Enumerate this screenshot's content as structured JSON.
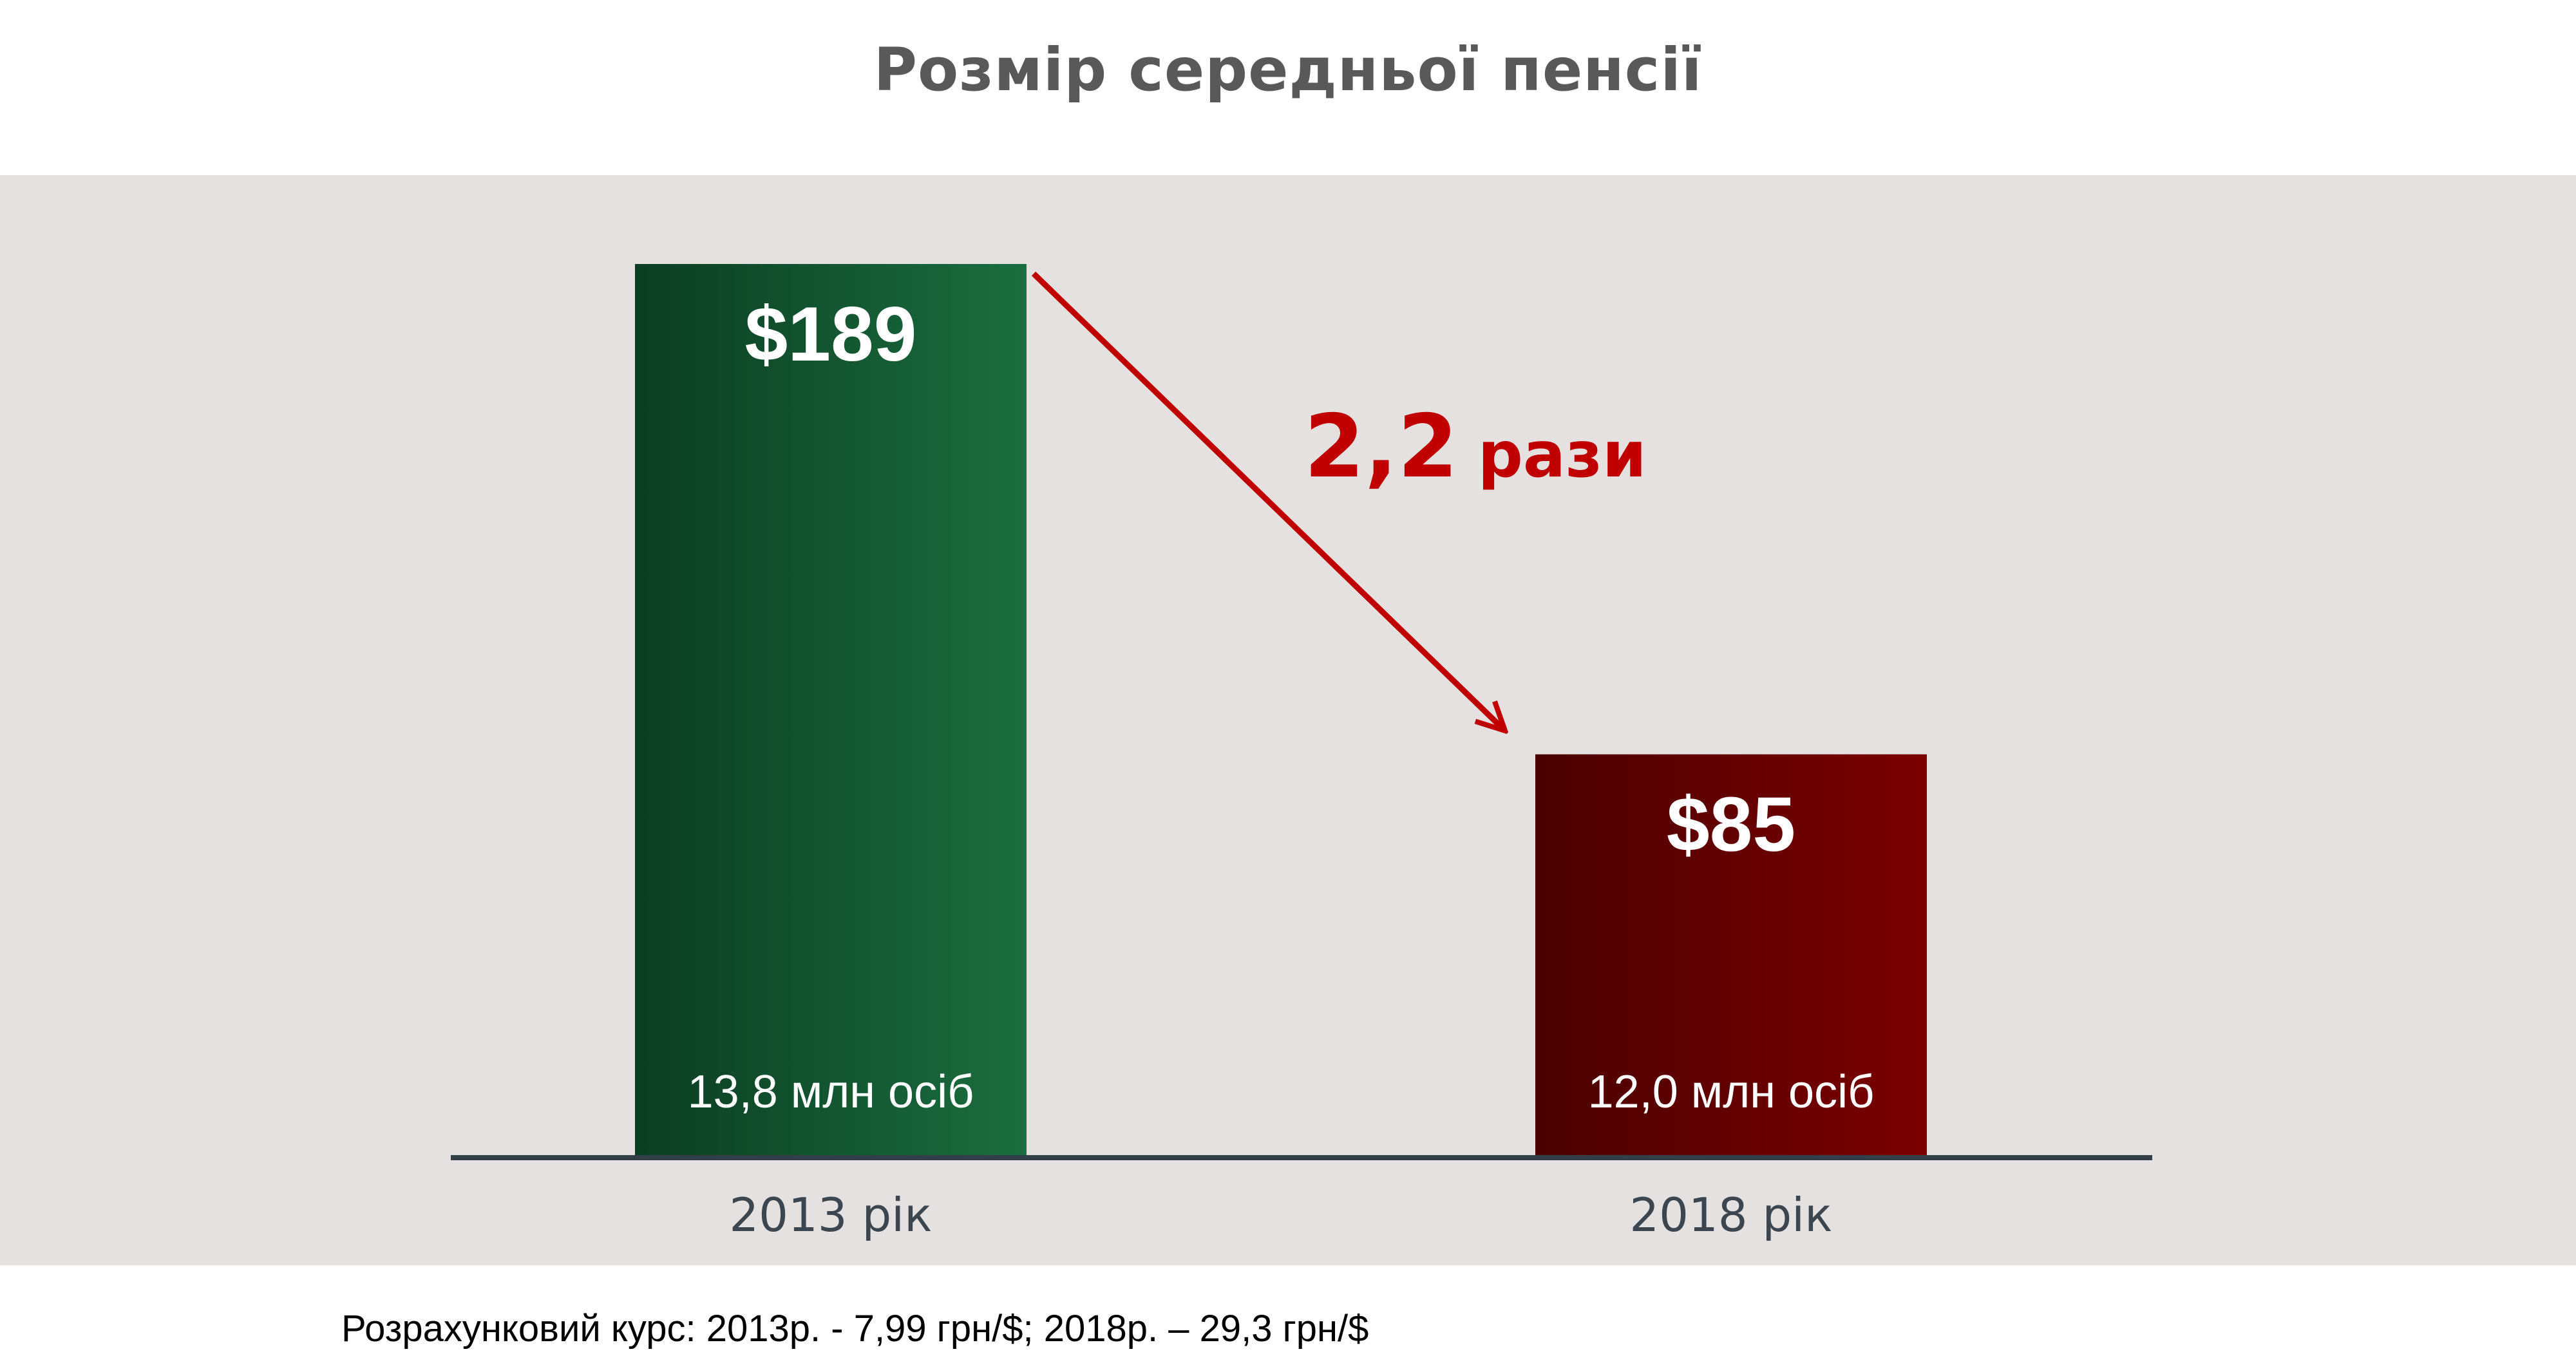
{
  "title": "Розмір середньої пенсії",
  "footnote": "Розрахунковий курс: 2013р. - 7,99 грн/$; 2018р. – 29,3 грн/$",
  "chart_data": {
    "type": "bar",
    "categories": [
      "2013 рік",
      "2018 рік"
    ],
    "values": [
      189,
      85
    ],
    "value_labels": [
      "$189",
      "$85"
    ],
    "bar_notes": [
      "13,8 млн осіб",
      "12,0 млн осіб"
    ],
    "ylim": [
      0,
      189
    ],
    "grid": false,
    "annotation": {
      "value": "2,2",
      "unit": "рази"
    },
    "colors": {
      "bar_2013_start": "#0b3d22",
      "bar_2013_end": "#1b6e3f",
      "bar_2018_start": "#4a0000",
      "bar_2018_end": "#7b0000",
      "arrow": "#c00000",
      "baseline": "#333f48",
      "category_text": "#3b4650"
    }
  }
}
